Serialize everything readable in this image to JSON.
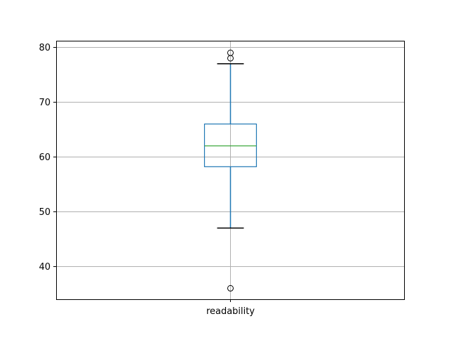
{
  "chart_data": {
    "type": "box",
    "categories": [
      "readability"
    ],
    "boxes": [
      {
        "label": "readability",
        "whisker_low": 47,
        "q1": 58.2,
        "median": 62,
        "q3": 66,
        "whisker_high": 77,
        "outliers": [
          79,
          78,
          36
        ]
      }
    ],
    "yticks": [
      40,
      50,
      60,
      70,
      80
    ],
    "ytick_labels": [
      "40",
      "50",
      "60",
      "70",
      "80"
    ],
    "ylim": [
      34,
      81.2
    ],
    "grid": true,
    "title": "",
    "xlabel": "",
    "ylabel": "",
    "colors": {
      "box": "#1f77b4",
      "median": "#2ca02c",
      "whisker_cap": "#000000",
      "outlier": "#000000",
      "grid": "#b0b0b0"
    }
  }
}
